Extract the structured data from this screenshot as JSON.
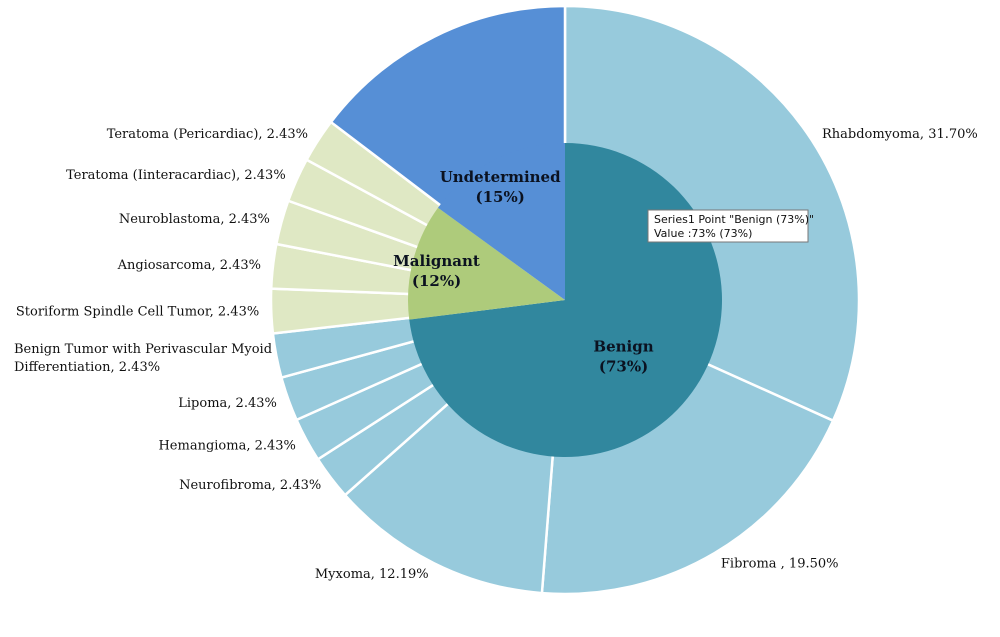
{
  "chart_data": {
    "type": "pie",
    "inner_ring": [
      {
        "label": "Benign",
        "value_text": "(73%)",
        "value": 73,
        "color": "#31879e"
      },
      {
        "label": "Malignant",
        "value_text": "(12%)",
        "value": 12,
        "color": "#aecb7b"
      },
      {
        "label": "Undetermined",
        "value_text": "(15%)",
        "value": 15,
        "color": "#568fd6"
      }
    ],
    "outer_ring": [
      {
        "label": "Rhabdomyoma, 31.70%",
        "value": 31.7,
        "group": "Benign",
        "color": "#97cadc"
      },
      {
        "label": "Fibroma , 19.50%",
        "value": 19.5,
        "group": "Benign",
        "color": "#97cadc"
      },
      {
        "label": "Myxoma, 12.19%",
        "value": 12.19,
        "group": "Benign",
        "color": "#97cadc"
      },
      {
        "label": "Neurofibroma, 2.43%",
        "value": 2.43,
        "group": "Benign",
        "color": "#97cadc"
      },
      {
        "label": "Hemangioma, 2.43%",
        "value": 2.43,
        "group": "Benign",
        "color": "#97cadc"
      },
      {
        "label": "Lipoma, 2.43%",
        "value": 2.43,
        "group": "Benign",
        "color": "#97cadc"
      },
      {
        "label": [
          "Benign Tumor with Perivascular Myoid",
          "Differentiation, 2.43%"
        ],
        "value": 2.43,
        "group": "Benign",
        "color": "#97cadc"
      },
      {
        "label": "Storiform Spindle Cell Tumor, 2.43%",
        "value": 2.43,
        "group": "Malignant",
        "color": "#dfe8c4"
      },
      {
        "label": "Angiosarcoma, 2.43%",
        "value": 2.43,
        "group": "Malignant",
        "color": "#dfe8c4"
      },
      {
        "label": "Neuroblastoma, 2.43%",
        "value": 2.43,
        "group": "Malignant",
        "color": "#dfe8c4"
      },
      {
        "label": "Teratoma (Iinteracardiac), 2.43%",
        "value": 2.43,
        "group": "Malignant",
        "color": "#dfe8c4"
      },
      {
        "label": "Teratoma (Pericardiac), 2.43%",
        "value": 2.43,
        "group": "Malignant",
        "color": "#dfe8c4"
      },
      {
        "label": "",
        "value": 14.64,
        "group": "Undetermined",
        "color": "#568fd6"
      }
    ],
    "tooltip": {
      "line1": "Series1 Point \"Benign (73%)\"",
      "line2": "Value :73% (73%)"
    }
  }
}
